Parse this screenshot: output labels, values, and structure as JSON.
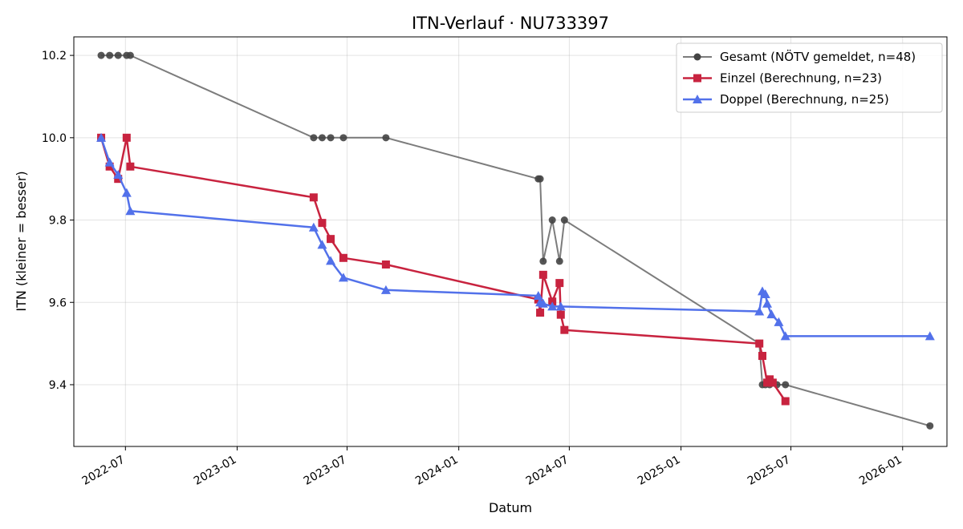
{
  "chart_data": {
    "type": "line",
    "title": "ITN-Verlauf · NU733397",
    "xlabel": "Datum",
    "ylabel": "ITN  (kleiner = besser)",
    "xlim": [
      "2022-04-07",
      "2026-03-15"
    ],
    "ylim": [
      9.25,
      10.245
    ],
    "y_ticks": [
      9.4,
      9.6,
      9.8,
      10.0,
      10.2
    ],
    "y_tick_labels": [
      "9.4",
      "9.6",
      "9.8",
      "10.0",
      "10.2"
    ],
    "x_ticks": [
      "2022-07-01",
      "2023-01-01",
      "2023-07-01",
      "2024-01-01",
      "2024-07-01",
      "2025-01-01",
      "2025-07-01",
      "2026-01-01"
    ],
    "x_tick_labels": [
      "2022-07",
      "2023-01",
      "2023-07",
      "2024-01",
      "2024-07",
      "2025-01",
      "2025-07",
      "2026-01"
    ],
    "grid": true,
    "legend_position": "top-right",
    "series": [
      {
        "name": "Gesamt (NÖTV gemeldet, n=48)",
        "color": "#444444",
        "marker": "circle",
        "points": [
          {
            "x": "2022-05-22",
            "y": 10.2
          },
          {
            "x": "2022-06-05",
            "y": 10.2
          },
          {
            "x": "2022-06-19",
            "y": 10.2
          },
          {
            "x": "2022-07-03",
            "y": 10.2
          },
          {
            "x": "2022-07-09",
            "y": 10.2
          },
          {
            "x": "2023-05-07",
            "y": 10.0
          },
          {
            "x": "2023-05-21",
            "y": 10.0
          },
          {
            "x": "2023-06-04",
            "y": 10.0
          },
          {
            "x": "2023-06-25",
            "y": 10.0
          },
          {
            "x": "2023-09-03",
            "y": 10.0
          },
          {
            "x": "2024-05-11",
            "y": 9.9
          },
          {
            "x": "2024-05-14",
            "y": 9.9
          },
          {
            "x": "2024-05-19",
            "y": 9.7
          },
          {
            "x": "2024-06-03",
            "y": 9.8
          },
          {
            "x": "2024-06-15",
            "y": 9.7
          },
          {
            "x": "2024-06-23",
            "y": 9.8
          },
          {
            "x": "2025-05-10",
            "y": 9.5
          },
          {
            "x": "2025-05-15",
            "y": 9.4
          },
          {
            "x": "2025-05-20",
            "y": 9.4
          },
          {
            "x": "2025-05-27",
            "y": 9.4
          },
          {
            "x": "2025-06-08",
            "y": 9.4
          },
          {
            "x": "2025-06-22",
            "y": 9.4
          },
          {
            "x": "2026-02-15",
            "y": 9.3
          }
        ]
      },
      {
        "name": "Einzel (Berechnung, n=23)",
        "color": "#c8233f",
        "marker": "square",
        "points": [
          {
            "x": "2022-05-22",
            "y": 10.0
          },
          {
            "x": "2022-06-05",
            "y": 9.93
          },
          {
            "x": "2022-06-19",
            "y": 9.9
          },
          {
            "x": "2022-07-03",
            "y": 10.0
          },
          {
            "x": "2022-07-09",
            "y": 9.93
          },
          {
            "x": "2023-05-07",
            "y": 9.855
          },
          {
            "x": "2023-05-21",
            "y": 9.793
          },
          {
            "x": "2023-06-04",
            "y": 9.754
          },
          {
            "x": "2023-06-25",
            "y": 9.708
          },
          {
            "x": "2023-09-03",
            "y": 9.692
          },
          {
            "x": "2024-05-11",
            "y": 9.607
          },
          {
            "x": "2024-05-14",
            "y": 9.575
          },
          {
            "x": "2024-05-19",
            "y": 9.667
          },
          {
            "x": "2024-06-03",
            "y": 9.602
          },
          {
            "x": "2024-06-15",
            "y": 9.647
          },
          {
            "x": "2024-06-17",
            "y": 9.57
          },
          {
            "x": "2024-06-23",
            "y": 9.533
          },
          {
            "x": "2025-05-10",
            "y": 9.5
          },
          {
            "x": "2025-05-15",
            "y": 9.47
          },
          {
            "x": "2025-05-23",
            "y": 9.405
          },
          {
            "x": "2025-05-27",
            "y": 9.413
          },
          {
            "x": "2025-06-01",
            "y": 9.405
          },
          {
            "x": "2025-06-22",
            "y": 9.36
          }
        ]
      },
      {
        "name": "Doppel (Berechnung, n=25)",
        "color": "#5271ea",
        "marker": "triangle",
        "points": [
          {
            "x": "2022-05-22",
            "y": 10.0
          },
          {
            "x": "2022-06-05",
            "y": 9.94
          },
          {
            "x": "2022-06-19",
            "y": 9.91
          },
          {
            "x": "2022-07-03",
            "y": 9.866
          },
          {
            "x": "2022-07-09",
            "y": 9.822
          },
          {
            "x": "2023-05-07",
            "y": 9.782
          },
          {
            "x": "2023-05-21",
            "y": 9.74
          },
          {
            "x": "2023-06-04",
            "y": 9.701
          },
          {
            "x": "2023-06-25",
            "y": 9.66
          },
          {
            "x": "2023-09-03",
            "y": 9.63
          },
          {
            "x": "2024-05-11",
            "y": 9.616
          },
          {
            "x": "2024-05-14",
            "y": 9.6
          },
          {
            "x": "2024-05-19",
            "y": 9.597
          },
          {
            "x": "2024-06-03",
            "y": 9.59
          },
          {
            "x": "2024-06-17",
            "y": 9.59
          },
          {
            "x": "2025-05-10",
            "y": 9.578
          },
          {
            "x": "2025-05-15",
            "y": 9.627
          },
          {
            "x": "2025-05-20",
            "y": 9.62
          },
          {
            "x": "2025-05-23",
            "y": 9.597
          },
          {
            "x": "2025-05-30",
            "y": 9.571
          },
          {
            "x": "2025-06-11",
            "y": 9.552
          },
          {
            "x": "2025-06-22",
            "y": 9.518
          },
          {
            "x": "2026-02-15",
            "y": 9.518
          }
        ]
      }
    ]
  }
}
